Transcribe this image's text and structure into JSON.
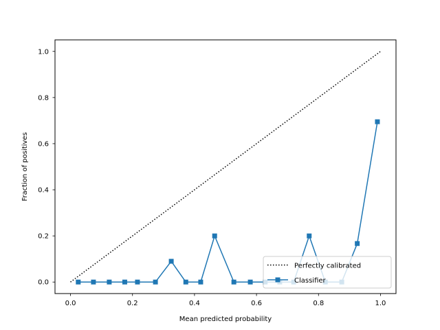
{
  "chart_data": {
    "type": "line",
    "xlabel": "Mean predicted probability",
    "ylabel": "Fraction of positives",
    "xlim": [
      -0.05,
      1.05
    ],
    "ylim": [
      -0.05,
      1.05
    ],
    "xticks": [
      "0.0",
      "0.2",
      "0.4",
      "0.6",
      "0.8",
      "1.0"
    ],
    "yticks": [
      "0.0",
      "0.2",
      "0.4",
      "0.6",
      "0.8",
      "1.0"
    ],
    "grid": false,
    "legend_position": "lower-right",
    "series": [
      {
        "name": "Perfectly calibrated",
        "style": "dotted",
        "color": "#000000",
        "x": [
          0.0,
          1.0
        ],
        "y": [
          0.0,
          1.0
        ]
      },
      {
        "name": "Classifier",
        "style": "solid-square-markers",
        "color": "#1f77b4",
        "x": [
          0.025,
          0.074,
          0.125,
          0.175,
          0.216,
          0.274,
          0.325,
          0.372,
          0.42,
          0.465,
          0.527,
          0.58,
          0.628,
          0.675,
          0.72,
          0.77,
          0.822,
          0.875,
          0.925,
          0.99
        ],
        "y": [
          0.0,
          0.0,
          0.0,
          0.0,
          0.0,
          0.0,
          0.09,
          0.0,
          0.0,
          0.2,
          0.0,
          0.0,
          0.0,
          0.0,
          0.0,
          0.2,
          0.0,
          0.0,
          0.167,
          0.695
        ]
      }
    ]
  }
}
